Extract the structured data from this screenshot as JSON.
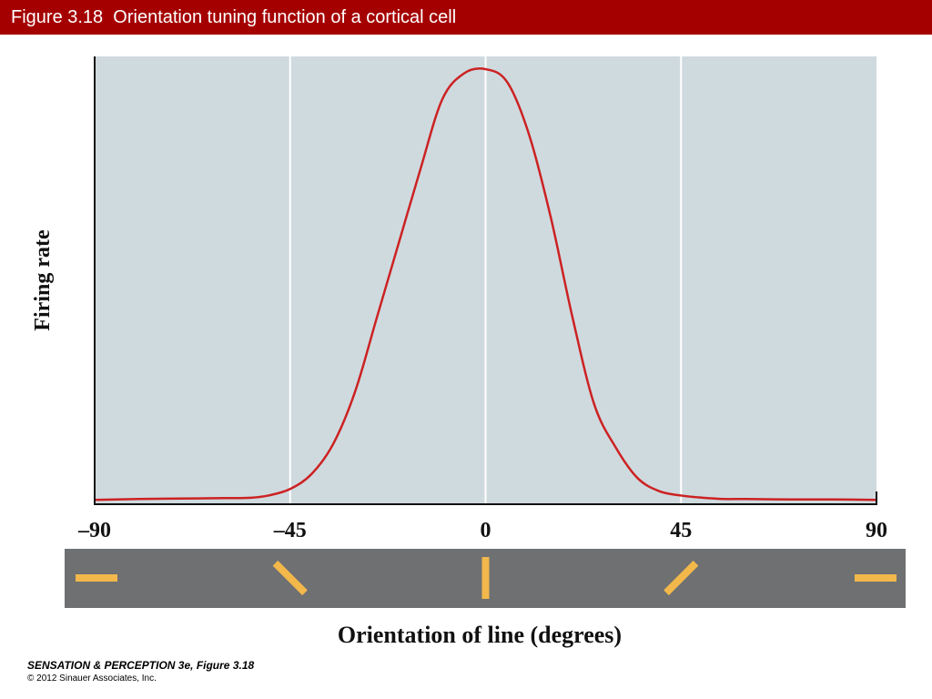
{
  "header": {
    "title": "Figure 3.18  Orientation tuning function of a cortical cell"
  },
  "colors": {
    "title_bar": "#a50000",
    "plot_bg": "#cfdadf",
    "curve": "#cc2222",
    "strip_bg": "#6e7072",
    "bar": "#f2b84b"
  },
  "chart_data": {
    "type": "line",
    "title": "",
    "xlabel": "Orientation of line (degrees)",
    "ylabel": "Firing rate",
    "xlim": [
      -90,
      90
    ],
    "ylim": [
      0,
      1
    ],
    "xticks": [
      "–90",
      "–45",
      "0",
      "45",
      "90"
    ],
    "xtick_values": [
      -90,
      -45,
      0,
      45,
      90
    ],
    "gridlines_x": [
      -45,
      0,
      45
    ],
    "y_tick_labels": false,
    "series": [
      {
        "x": [
          -90,
          -80,
          -70,
          -60,
          -54,
          -50,
          -45,
          -40,
          -35,
          -30,
          -25,
          -20,
          -15,
          -10,
          -5,
          0,
          5,
          10,
          15,
          20,
          25,
          30,
          35,
          40,
          45,
          50,
          55,
          60,
          70,
          80,
          90
        ],
        "values": [
          0.01,
          0.012,
          0.013,
          0.014,
          0.015,
          0.02,
          0.035,
          0.07,
          0.14,
          0.26,
          0.43,
          0.6,
          0.77,
          0.93,
          0.99,
          1.0,
          0.97,
          0.85,
          0.66,
          0.43,
          0.23,
          0.13,
          0.06,
          0.03,
          0.02,
          0.015,
          0.012,
          0.012,
          0.011,
          0.011,
          0.01
        ]
      }
    ],
    "orientation_markers": [
      -90,
      -45,
      0,
      45,
      90
    ]
  },
  "footer": {
    "line1": "SENSATION & PERCEPTION 3e, Figure 3.18",
    "line2": "© 2012 Sinauer Associates, Inc."
  }
}
